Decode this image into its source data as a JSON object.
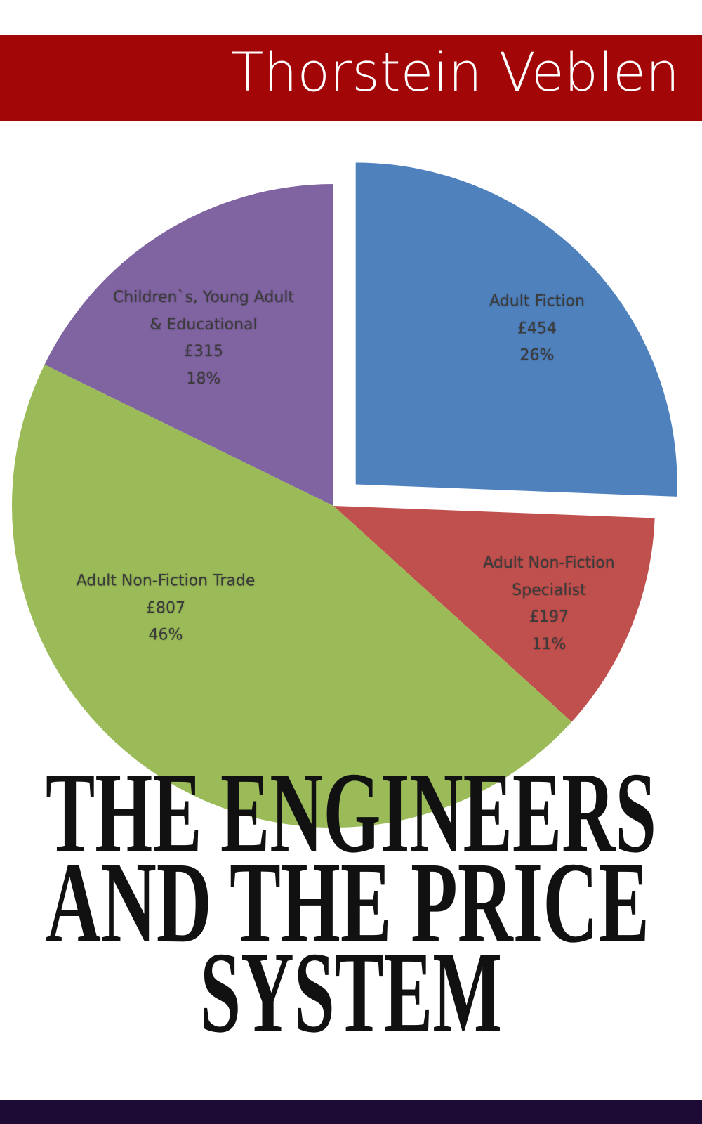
{
  "header": {
    "author": "Thorstein Veblen"
  },
  "chart_data": {
    "type": "pie",
    "categories": [
      "Adult Fiction",
      "Adult Non-Fiction Specialist",
      "Adult Non-Fiction Trade",
      "Children`s, Young Adult & Educational"
    ],
    "values": [
      454,
      197,
      807,
      315
    ],
    "value_labels": [
      "£454",
      "£197",
      "£807",
      "£315"
    ],
    "percentages": [
      26,
      11,
      46,
      18
    ],
    "percentage_labels": [
      "26%",
      "11%",
      "46%",
      "18%"
    ],
    "colors": [
      "#4f81bd",
      "#c0504d",
      "#9bbb59",
      "#8064a2"
    ]
  },
  "book_title": {
    "lines": [
      "THE ENGINEERS",
      "AND THE PRICE",
      "SYSTEM"
    ]
  }
}
